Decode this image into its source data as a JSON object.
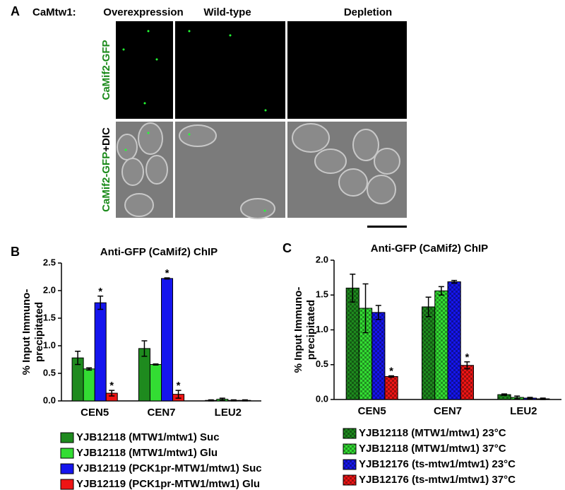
{
  "panel_a": {
    "label": "A",
    "genotype_label": "CaMtw1:",
    "columns": [
      "Overexpression",
      "Wild-type",
      "Depletion"
    ],
    "rows": [
      [
        "CaMif2-GFP"
      ],
      [
        "CaMif2-GFP",
        "+DIC"
      ]
    ]
  },
  "chart_data": [
    {
      "type": "bar",
      "panel": "B",
      "title": "Anti-GFP (CaMif2) ChIP",
      "ylabel_lines": [
        "% Input Immuno-",
        "precipitated"
      ],
      "categories": [
        "CEN5",
        "CEN7",
        "LEU2"
      ],
      "ylim": [
        0,
        2.5
      ],
      "yticks": [
        {
          "value": 0,
          "label": "0.0"
        },
        0.5,
        {
          "value": 1,
          "label": "1.0"
        },
        1.5,
        {
          "value": 2,
          "label": "2.0"
        },
        2.5
      ],
      "pattern": "solid",
      "series": [
        {
          "name": "YJB12118 (MTW1/mtw1) Suc",
          "color": "#1e8a1e",
          "values": [
            0.78,
            0.95,
            0.01
          ],
          "errors": [
            0.12,
            0.14,
            0.01
          ],
          "labels": [
            null,
            null,
            null
          ]
        },
        {
          "name": "YJB12118 (MTW1/mtw1) Glu",
          "color": "#33dd33",
          "values": [
            0.58,
            0.66,
            0.03
          ],
          "errors": [
            0.02,
            0.01,
            0.02
          ],
          "labels": [
            null,
            null,
            null
          ]
        },
        {
          "name": "YJB12119 (PCK1pr-MTW1/mtw1) Suc",
          "color": "#1515ee",
          "values": [
            1.78,
            2.22,
            0.01
          ],
          "errors": [
            0.12,
            0.01,
            0.01
          ],
          "labels": [
            "*",
            "*",
            null
          ]
        },
        {
          "name": "YJB12119 (PCK1pr-MTW1/mtw1) Glu",
          "color": "#ee1515",
          "values": [
            0.14,
            0.12,
            0.01
          ],
          "errors": [
            0.05,
            0.07,
            0.01
          ],
          "labels": [
            "*",
            "*",
            null
          ]
        }
      ]
    },
    {
      "type": "bar",
      "panel": "C",
      "title": "Anti-GFP (CaMif2) ChIP",
      "ylabel_lines": [
        "% Input Immuno-",
        "precipitated"
      ],
      "categories": [
        "CEN5",
        "CEN7",
        "LEU2"
      ],
      "ylim": [
        0,
        2.0
      ],
      "yticks": [
        {
          "value": 0,
          "label": "0.0"
        },
        0.5,
        {
          "value": 1,
          "label": "1.0"
        },
        1.5,
        {
          "value": 2,
          "label": "2.0"
        }
      ],
      "pattern": "checkered",
      "series": [
        {
          "name": "YJB12118 (MTW1/mtw1) 23°C",
          "color": "#1e8a1e",
          "values": [
            1.6,
            1.33,
            0.07
          ],
          "errors": [
            0.2,
            0.14,
            0.01
          ],
          "labels": [
            null,
            null,
            null
          ]
        },
        {
          "name": "YJB12118 (MTW1/mtw1) 37°C",
          "color": "#33dd33",
          "values": [
            1.31,
            1.56,
            0.03
          ],
          "errors": [
            0.35,
            0.06,
            0.02
          ],
          "labels": [
            null,
            null,
            null
          ]
        },
        {
          "name": "YJB12176 (ts-mtw1/mtw1) 23°C",
          "color": "#1515ee",
          "values": [
            1.25,
            1.69,
            0.02
          ],
          "errors": [
            0.1,
            0.02,
            0.01
          ],
          "labels": [
            null,
            null,
            null
          ]
        },
        {
          "name": "YJB12176 (ts-mtw1/mtw1) 37°C",
          "color": "#ee1515",
          "values": [
            0.33,
            0.49,
            0.01
          ],
          "errors": [
            0.01,
            0.05,
            0.01
          ],
          "labels": [
            "*",
            "*",
            null
          ]
        }
      ]
    }
  ]
}
